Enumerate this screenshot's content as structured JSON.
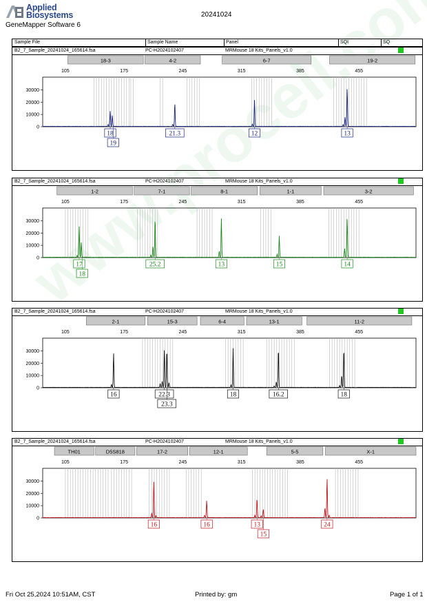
{
  "header": {
    "brand_line1": "Applied",
    "brand_line2": "Biosystems",
    "software": "GeneMapper Software 6",
    "date": "20241024"
  },
  "columns": {
    "sample_file": "Sample File",
    "sample_name": "Sample Name",
    "panel": "Panel",
    "sqi": "SQI",
    "sq": "SQ"
  },
  "sq_color": "#22c922",
  "watermark": "www.procell.com.cn",
  "footer": {
    "datetime": "Fri Oct 25,2024 10:51AM, CST",
    "printed_by": "Printed by: gm",
    "page": "Page 1 of 1"
  },
  "chart_data": [
    {
      "type": "line",
      "sample_file": "B2_7_Sample_20241024_165614.fsa",
      "sample_name": "PC-H2024102407",
      "panel": "MRMouse 18 Kits_Panels_v1.0",
      "color": "#1a237e",
      "xticks": [
        105,
        175,
        245,
        315,
        385,
        455
      ],
      "yticks": [
        0,
        10000,
        20000,
        30000
      ],
      "xlim": [
        78,
        523
      ],
      "ylim": [
        0,
        37000
      ],
      "markers": [
        {
          "name": "18-3",
          "start": 108,
          "end": 198
        },
        {
          "name": "4-2",
          "start": 200,
          "end": 266
        },
        {
          "name": "6-7",
          "start": 292,
          "end": 398
        },
        {
          "name": "19-2",
          "start": 420,
          "end": 522
        }
      ],
      "bins": [
        139,
        142,
        145,
        148,
        151,
        154,
        157,
        160,
        163,
        166,
        169,
        172,
        175,
        178,
        181,
        183,
        186,
        218,
        221,
        250,
        253,
        256,
        259,
        262,
        265,
        327,
        330,
        333,
        336,
        339,
        342,
        345,
        348,
        351,
        425,
        428,
        431,
        434,
        437,
        440,
        443,
        446,
        449,
        452,
        455,
        458,
        461,
        464
      ],
      "peaks": [
        {
          "x": 158.5,
          "h": 12500
        },
        {
          "x": 161,
          "h": 9000
        },
        {
          "x": 156,
          "h": 1500
        },
        {
          "x": 235.5,
          "h": 19000
        },
        {
          "x": 233,
          "h": 1800
        },
        {
          "x": 330.5,
          "h": 21500
        },
        {
          "x": 328,
          "h": 2000
        },
        {
          "x": 441,
          "h": 31500
        },
        {
          "x": 438.5,
          "h": 7500
        },
        {
          "x": 436,
          "h": 1500
        }
      ],
      "alleles": [
        {
          "label": "18",
          "x": 158.5,
          "row": 1
        },
        {
          "label": "19",
          "x": 162,
          "row": 2
        },
        {
          "label": "21.3",
          "x": 235.5,
          "row": 1
        },
        {
          "label": "12",
          "x": 330.5,
          "row": 1
        },
        {
          "label": "13",
          "x": 441,
          "row": 1
        }
      ]
    },
    {
      "type": "line",
      "sample_file": "B2_7_Sample_20241024_165614.fsa",
      "sample_name": "PC-H2024102407",
      "panel": "MRMouse 18 Kits_Panels_v1.0",
      "color": "#1a8a1a",
      "xticks": [
        105,
        175,
        245,
        315,
        385,
        455
      ],
      "yticks": [
        0,
        10000,
        20000,
        30000
      ],
      "xlim": [
        78,
        523
      ],
      "ylim": [
        0,
        37000
      ],
      "markers": [
        {
          "name": "1-2",
          "start": 95,
          "end": 185
        },
        {
          "name": "7-1",
          "start": 187,
          "end": 253
        },
        {
          "name": "8-1",
          "start": 255,
          "end": 334
        },
        {
          "name": "1-1",
          "start": 337,
          "end": 410
        },
        {
          "name": "3-2",
          "start": 413,
          "end": 520
        }
      ],
      "bins": [
        105,
        108,
        111,
        114,
        117,
        120,
        123,
        126,
        129,
        132,
        191,
        194,
        197,
        200,
        203,
        206,
        209,
        212,
        215,
        262,
        265,
        268,
        271,
        274,
        277,
        280,
        338,
        341,
        344,
        347,
        350,
        419,
        422,
        425,
        428,
        431,
        434,
        437,
        440,
        443,
        446,
        449,
        452,
        455
      ],
      "peaks": [
        {
          "x": 121.5,
          "h": 25000
        },
        {
          "x": 124,
          "h": 12000
        },
        {
          "x": 119,
          "h": 1500
        },
        {
          "x": 212,
          "h": 32000
        },
        {
          "x": 209.5,
          "h": 9000
        },
        {
          "x": 207,
          "h": 1800
        },
        {
          "x": 291,
          "h": 32000
        },
        {
          "x": 288.5,
          "h": 5000
        },
        {
          "x": 360,
          "h": 17500
        },
        {
          "x": 357.5,
          "h": 2500
        },
        {
          "x": 441,
          "h": 32000
        },
        {
          "x": 438,
          "h": 7000
        }
      ],
      "alleles": [
        {
          "label": "17",
          "x": 121.5,
          "row": 1
        },
        {
          "label": "18",
          "x": 125,
          "row": 2
        },
        {
          "label": "25.2",
          "x": 212,
          "row": 1
        },
        {
          "label": "13",
          "x": 291,
          "row": 1
        },
        {
          "label": "15",
          "x": 360,
          "row": 1
        },
        {
          "label": "14",
          "x": 441,
          "row": 1
        }
      ]
    },
    {
      "type": "line",
      "sample_file": "B2_7_Sample_20241024_165614.fsa",
      "sample_name": "PC-H2024102407",
      "panel": "MRMouse 18 Kits_Panels_v1.0",
      "color": "#111111",
      "xticks": [
        105,
        175,
        245,
        315,
        385,
        455
      ],
      "yticks": [
        0,
        10000,
        20000,
        30000
      ],
      "xlim": [
        78,
        523
      ],
      "ylim": [
        0,
        37000
      ],
      "markers": [
        {
          "name": "2-1",
          "start": 130,
          "end": 200
        },
        {
          "name": "15-3",
          "start": 203,
          "end": 262
        },
        {
          "name": "6-4",
          "start": 266,
          "end": 318
        },
        {
          "name": "13-1",
          "start": 321,
          "end": 387
        },
        {
          "name": "11-2",
          "start": 393,
          "end": 518
        }
      ],
      "bins": [
        197,
        200,
        203,
        206,
        209,
        212,
        215,
        218,
        221,
        224,
        227,
        230,
        233,
        296,
        299,
        302,
        305,
        308,
        311,
        314,
        317,
        345,
        348,
        351,
        354,
        357,
        360,
        363,
        366,
        369,
        372,
        375,
        378,
        420,
        423,
        426,
        429,
        432,
        435,
        438,
        441,
        444,
        447,
        450
      ],
      "peaks": [
        {
          "x": 162.5,
          "h": 28000
        },
        {
          "x": 160,
          "h": 2500
        },
        {
          "x": 223,
          "h": 31000
        },
        {
          "x": 226,
          "h": 31000
        },
        {
          "x": 220.5,
          "h": 5000
        },
        {
          "x": 218,
          "h": 3000
        },
        {
          "x": 228.5,
          "h": 4000
        },
        {
          "x": 305,
          "h": 32000
        },
        {
          "x": 302.5,
          "h": 2000
        },
        {
          "x": 359,
          "h": 32000
        },
        {
          "x": 356.5,
          "h": 4500
        },
        {
          "x": 354,
          "h": 1200
        },
        {
          "x": 437,
          "h": 31500
        },
        {
          "x": 434.5,
          "h": 10000
        },
        {
          "x": 432,
          "h": 1500
        }
      ],
      "alleles": [
        {
          "label": "16",
          "x": 162.5,
          "row": 1
        },
        {
          "label": "22.3",
          "x": 223,
          "row": 1
        },
        {
          "label": "23.3",
          "x": 226,
          "row": 2
        },
        {
          "label": "18",
          "x": 305,
          "row": 1
        },
        {
          "label": "16.2",
          "x": 359,
          "row": 1
        },
        {
          "label": "18",
          "x": 437,
          "row": 1
        }
      ]
    },
    {
      "type": "line",
      "sample_file": "B2_7_Sample_20241024_165614.fsa",
      "sample_name": "PC-H2024102407",
      "panel": "MRMouse 18 Kits_Panels_v1.0",
      "color": "#c0161c",
      "xticks": [
        105,
        175,
        245,
        315,
        385,
        455
      ],
      "yticks": [
        0,
        10000,
        20000,
        30000
      ],
      "xlim": [
        78,
        523
      ],
      "ylim": [
        0,
        37000
      ],
      "markers": [
        {
          "name": "TH01",
          "start": 92,
          "end": 139
        },
        {
          "name": "D5S818",
          "start": 141,
          "end": 188
        },
        {
          "name": "17-2",
          "start": 190,
          "end": 251
        },
        {
          "name": "12-1",
          "start": 253,
          "end": 322
        },
        {
          "name": "5-5",
          "start": 345,
          "end": 412
        },
        {
          "name": "X-1",
          "start": 415,
          "end": 523
        }
      ],
      "bins": [
        105,
        108,
        111,
        114,
        117,
        120,
        123,
        126,
        129,
        132,
        135,
        138,
        141,
        144,
        147,
        150,
        153,
        156,
        160,
        163,
        166,
        169,
        172,
        175,
        178,
        181,
        184,
        205,
        208,
        211,
        214,
        217,
        220,
        223,
        226,
        229,
        249,
        252,
        255,
        258,
        261,
        264,
        267,
        328,
        331,
        334,
        337,
        340,
        343,
        346,
        349,
        352,
        355,
        358,
        361,
        364,
        367,
        370,
        427,
        430,
        433,
        436,
        439,
        442,
        445,
        448,
        451,
        454
      ],
      "peaks": [
        {
          "x": 210.5,
          "h": 30000
        },
        {
          "x": 208,
          "h": 3500
        },
        {
          "x": 213,
          "h": 1500
        },
        {
          "x": 273.5,
          "h": 14000
        },
        {
          "x": 271,
          "h": 2000
        },
        {
          "x": 333.5,
          "h": 15500
        },
        {
          "x": 341,
          "h": 7000
        },
        {
          "x": 331,
          "h": 2000
        },
        {
          "x": 338.5,
          "h": 1500
        },
        {
          "x": 417,
          "h": 32000
        },
        {
          "x": 414.5,
          "h": 8000
        },
        {
          "x": 419.5,
          "h": 2000
        }
      ],
      "alleles": [
        {
          "label": "16",
          "x": 210.5,
          "row": 1
        },
        {
          "label": "16",
          "x": 273.5,
          "row": 1
        },
        {
          "label": "13",
          "x": 333.5,
          "row": 1
        },
        {
          "label": "15",
          "x": 341,
          "row": 2
        },
        {
          "label": "24",
          "x": 417,
          "row": 1
        }
      ]
    }
  ]
}
